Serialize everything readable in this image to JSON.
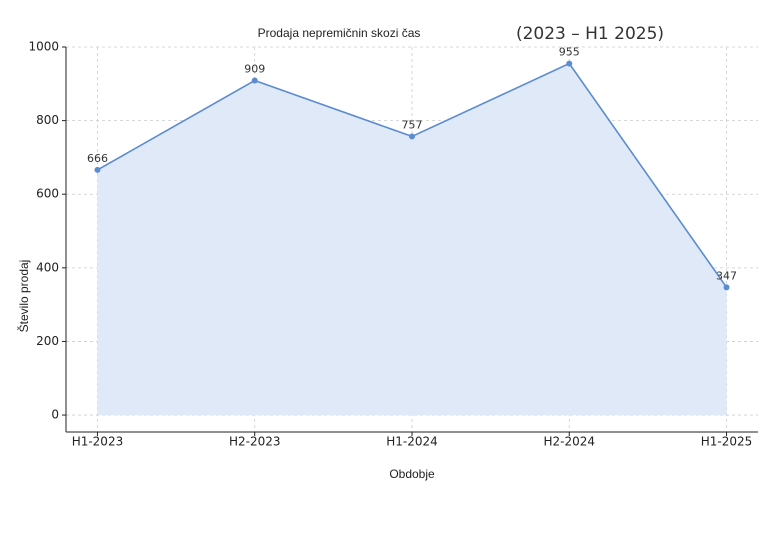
{
  "chart_data": {
    "type": "line",
    "title": "Prodaja nepremičnin skozi čas",
    "subtitle": "(2023 – H1 2025)",
    "x_label": "Obdobje",
    "y_label": "Število prodaj",
    "categories": [
      "H1-2023",
      "H2-2023",
      "H1-2024",
      "H2-2024",
      "H1-2025"
    ],
    "values": [
      666,
      909,
      757,
      955,
      347
    ],
    "color": "#5b8bd0",
    "fill_color": "#dfe9f7",
    "ylim": [
      -46,
      1000
    ],
    "yticks": [
      0,
      200,
      400,
      600,
      800,
      1000
    ],
    "grid": true
  }
}
